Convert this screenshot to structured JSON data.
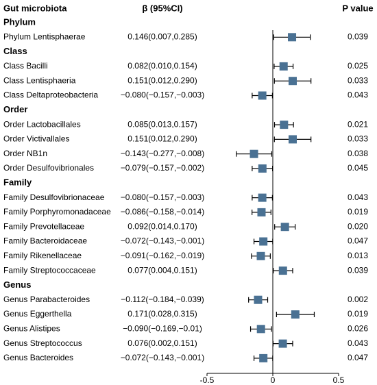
{
  "chart_data": {
    "type": "forest",
    "headers": {
      "label": "Gut microbiota",
      "estimate": "β (95%CI)",
      "p": "P value"
    },
    "xlim": [
      -0.5,
      0.5
    ],
    "xticks": [
      -0.5,
      0,
      0.5
    ],
    "color": "#4a7193",
    "groups": [
      {
        "name": "Phylum",
        "rows": [
          {
            "label": "Phylum Lentisphaerae",
            "estimate": 0.146,
            "lower": 0.007,
            "upper": 0.285,
            "ci_label": "0.146(0.007,0.285)",
            "p": "0.039"
          }
        ]
      },
      {
        "name": "Class",
        "rows": [
          {
            "label": "Class Bacilli",
            "estimate": 0.082,
            "lower": 0.01,
            "upper": 0.154,
            "ci_label": "0.082(0.010,0.154)",
            "p": "0.025"
          },
          {
            "label": "Class Lentisphaeria",
            "estimate": 0.151,
            "lower": 0.012,
            "upper": 0.29,
            "ci_label": "0.151(0.012,0.290)",
            "p": "0.033"
          },
          {
            "label": "Class Deltaproteobacteria",
            "estimate": -0.08,
            "lower": -0.157,
            "upper": -0.003,
            "ci_label": "−0.080(−0.157,−0.003)",
            "p": "0.043"
          }
        ]
      },
      {
        "name": "Order",
        "rows": [
          {
            "label": "Order Lactobacillales",
            "estimate": 0.085,
            "lower": 0.013,
            "upper": 0.157,
            "ci_label": "0.085(0.013,0.157)",
            "p": "0.021"
          },
          {
            "label": "Order Victivallales",
            "estimate": 0.151,
            "lower": 0.012,
            "upper": 0.29,
            "ci_label": "0.151(0.012,0.290)",
            "p": "0.033"
          },
          {
            "label": "Order NB1n",
            "estimate": -0.143,
            "lower": -0.277,
            "upper": -0.008,
            "ci_label": "−0.143(−0.277,−0.008)",
            "p": "0.038"
          },
          {
            "label": "Order Desulfovibrionales",
            "estimate": -0.079,
            "lower": -0.157,
            "upper": -0.002,
            "ci_label": "−0.079(−0.157,−0.002)",
            "p": "0.045"
          }
        ]
      },
      {
        "name": "Family",
        "rows": [
          {
            "label": "Family Desulfovibrionaceae",
            "estimate": -0.08,
            "lower": -0.157,
            "upper": -0.003,
            "ci_label": "−0.080(−0.157,−0.003)",
            "p": "0.043"
          },
          {
            "label": "Family Porphyromonadaceae",
            "estimate": -0.086,
            "lower": -0.158,
            "upper": -0.014,
            "ci_label": "−0.086(−0.158,−0.014)",
            "p": "0.019"
          },
          {
            "label": "Family Prevotellaceae",
            "estimate": 0.092,
            "lower": 0.014,
            "upper": 0.17,
            "ci_label": "0.092(0.014,0.170)",
            "p": "0.020"
          },
          {
            "label": "Family Bacteroidaceae",
            "estimate": -0.072,
            "lower": -0.143,
            "upper": -0.001,
            "ci_label": "−0.072(−0.143,−0.001)",
            "p": "0.047"
          },
          {
            "label": "Family Rikenellaceae",
            "estimate": -0.091,
            "lower": -0.162,
            "upper": -0.019,
            "ci_label": "−0.091(−0.162,−0.019)",
            "p": "0.013"
          },
          {
            "label": "Family Streptococcaceae",
            "estimate": 0.077,
            "lower": 0.004,
            "upper": 0.151,
            "ci_label": "0.077(0.004,0.151)",
            "p": "0.039"
          }
        ]
      },
      {
        "name": "Genus",
        "rows": [
          {
            "label": "Genus Parabacteroides",
            "estimate": -0.112,
            "lower": -0.184,
            "upper": -0.039,
            "ci_label": "−0.112(−0.184,−0.039)",
            "p": "0.002"
          },
          {
            "label": "Genus Eggerthella",
            "estimate": 0.171,
            "lower": 0.028,
            "upper": 0.315,
            "ci_label": "0.171(0.028,0.315)",
            "p": "0.019"
          },
          {
            "label": "Genus Alistipes",
            "estimate": -0.09,
            "lower": -0.169,
            "upper": -0.01,
            "ci_label": "−0.090(−0.169,−0.01)",
            "p": "0.026"
          },
          {
            "label": "Genus Streptococcus",
            "estimate": 0.076,
            "lower": 0.002,
            "upper": 0.151,
            "ci_label": "0.076(0.002,0.151)",
            "p": "0.043"
          },
          {
            "label": "Genus Bacteroides",
            "estimate": -0.072,
            "lower": -0.143,
            "upper": -0.001,
            "ci_label": "−0.072(−0.143,−0.001)",
            "p": "0.047"
          }
        ]
      }
    ]
  }
}
